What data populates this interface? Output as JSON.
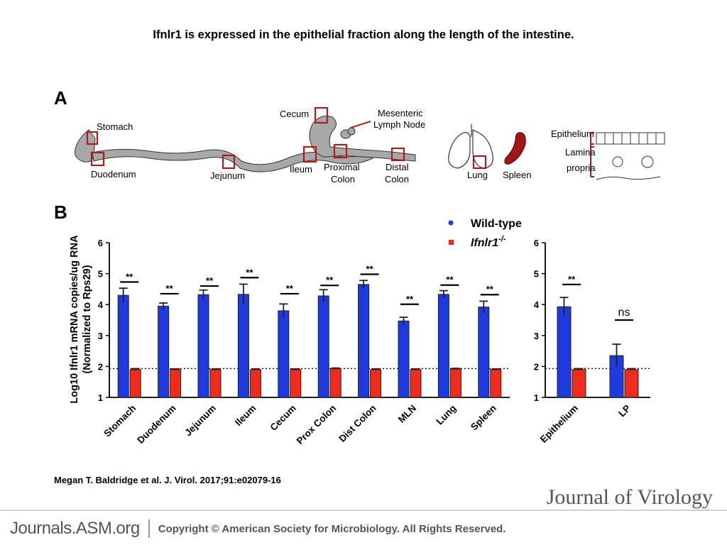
{
  "title": "Ifnlr1 is expressed in the epithelial fraction along the length of the intestine.",
  "panel_a": {
    "letter": "A",
    "labels": {
      "stomach": "Stomach",
      "duodenum": "Duodenum",
      "jejunum": "Jejunum",
      "ileum": "Ileum",
      "cecum": "Cecum",
      "mln_line1": "Mesenteric",
      "mln_line2": "Lymph Node",
      "prox_line1": "Proximal",
      "prox_line2": "Colon",
      "distal_line1": "Distal",
      "distal_line2": "Colon",
      "lung": "Lung",
      "spleen": "Spleen",
      "epithelium": "Epithelium",
      "lp_line1": "Lamina",
      "lp_line2": "propria"
    }
  },
  "panel_b": {
    "letter": "B"
  },
  "colors": {
    "wild_type": "#1f3be0",
    "knockout": "#ee2b1c",
    "box": "#b01c1c",
    "tissue": "#a8a8a8"
  },
  "chart_data": [
    {
      "type": "bar",
      "ylabel_line1": "Log10 Ifnlr1 mRNA copies/ug RNA",
      "ylabel_line2": "(Normalized to Rps29)",
      "ylim": [
        1,
        6
      ],
      "yticks": [
        "1",
        "2",
        "3",
        "4",
        "5",
        "6"
      ],
      "dotted_line": 1.93,
      "legend": [
        {
          "name": "Wild-type",
          "color": "#1f3be0"
        },
        {
          "name": "Ifnlr1",
          "sup": "-/-",
          "color": "#ee2b1c"
        }
      ],
      "categories": [
        "Stomach",
        "Duodenum",
        "Jejunum",
        "Ileum",
        "Cecum",
        "Prox Colon",
        "Dist Colon",
        "MLN",
        "Lung",
        "Spleen"
      ],
      "series": [
        {
          "name": "Wild-type",
          "values": [
            4.3,
            3.95,
            4.32,
            4.33,
            3.8,
            4.28,
            4.65,
            3.47,
            4.33,
            3.92
          ],
          "errors": [
            0.23,
            0.1,
            0.15,
            0.33,
            0.22,
            0.2,
            0.13,
            0.12,
            0.12,
            0.19
          ]
        },
        {
          "name": "Ifnlr1-/-",
          "values": [
            1.9,
            1.9,
            1.9,
            1.9,
            1.9,
            1.93,
            1.9,
            1.9,
            1.92,
            1.9
          ],
          "errors": [
            0.03,
            0.02,
            0.02,
            0.02,
            0.02,
            0.02,
            0.02,
            0.02,
            0.02,
            0.02
          ]
        }
      ],
      "significance": [
        "**",
        "**",
        "**",
        "**",
        "**",
        "**",
        "**",
        "**",
        "**",
        "**"
      ],
      "sig_levels": [
        4.73,
        4.35,
        4.6,
        4.87,
        4.35,
        4.62,
        4.98,
        4.01,
        4.63,
        4.32
      ]
    },
    {
      "type": "bar",
      "ylim": [
        1,
        6
      ],
      "yticks": [
        "1",
        "2",
        "3",
        "4",
        "5",
        "6"
      ],
      "dotted_line": 1.93,
      "categories": [
        "Epithelium",
        "LP"
      ],
      "series": [
        {
          "name": "Wild-type",
          "values": [
            3.93,
            2.35
          ],
          "errors": [
            0.3,
            0.37
          ]
        },
        {
          "name": "Ifnlr1-/-",
          "values": [
            1.9,
            1.9
          ],
          "errors": [
            0.03,
            0.03
          ]
        }
      ],
      "significance": [
        "**",
        "ns"
      ],
      "sig_levels": [
        4.65,
        3.5
      ]
    }
  ],
  "citation": "Megan T. Baldridge et al. J. Virol. 2017;91:e02079-16",
  "journal": "Journal of Virology",
  "footer": {
    "site": "Journals.ASM.org",
    "copyright": "Copyright © American Society for Microbiology. All Rights Reserved."
  }
}
